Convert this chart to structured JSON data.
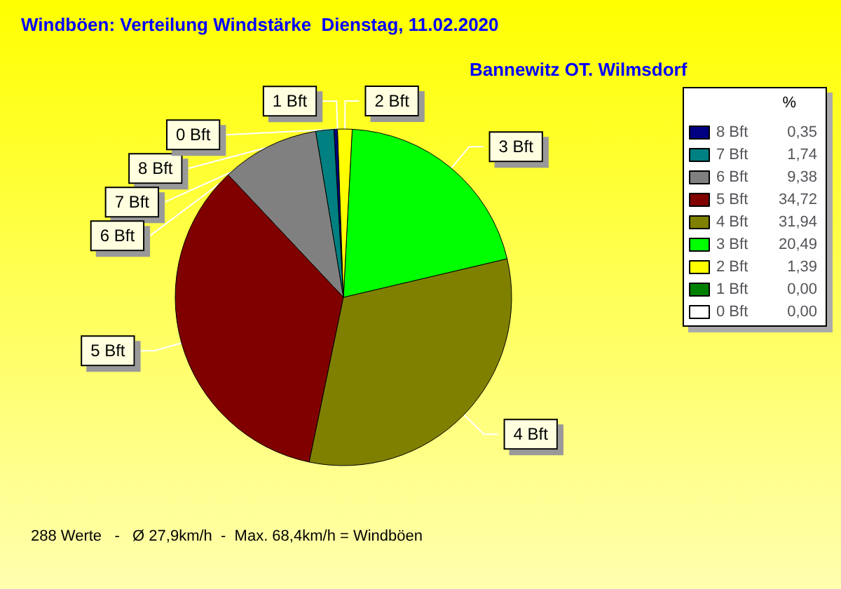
{
  "chart_data": {
    "type": "pie",
    "title": "Windböen: Verteilung Windstärke  Dienstag, 11.02.2020",
    "subtitle": "Bannewitz OT. Wilmsdorf",
    "categories": [
      "8 Bft",
      "7 Bft",
      "6 Bft",
      "5 Bft",
      "4 Bft",
      "3 Bft",
      "2 Bft",
      "1 Bft",
      "0 Bft"
    ],
    "values": [
      0.35,
      1.74,
      9.38,
      34.72,
      31.94,
      20.49,
      1.39,
      0.0,
      0.0
    ],
    "value_labels": [
      "0,35",
      "1,74",
      "9,38",
      "34,72",
      "31,94",
      "20,49",
      "1,39",
      "0,00",
      "0,00"
    ],
    "colors": [
      "#000080",
      "#008080",
      "#808080",
      "#800000",
      "#808000",
      "#00ff00",
      "#ffff00",
      "#008000",
      "#ffffff"
    ],
    "legend": "right",
    "legend_title": "%",
    "annotations": [
      "288 Werte   -   Ø 27,9km/h  -  Max. 68,4km/h = Windböen"
    ]
  }
}
